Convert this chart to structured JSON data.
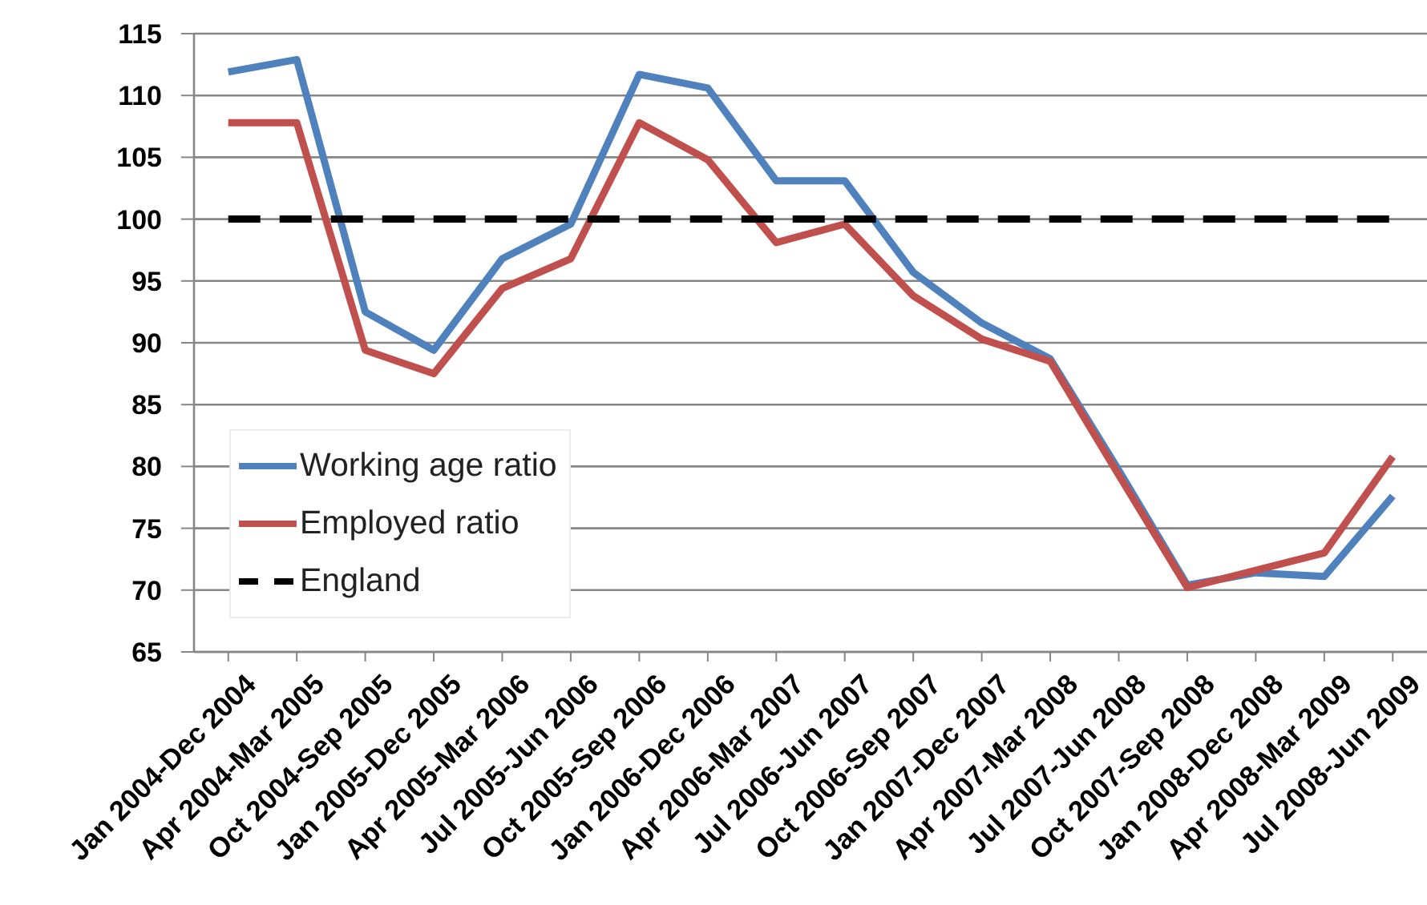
{
  "chart_data": {
    "type": "line",
    "categories": [
      "Jan 2004-Dec 2004",
      "Apr 2004-Mar 2005",
      "Oct 2004-Sep 2005",
      "Jan 2005-Dec 2005",
      "Apr 2005-Mar 2006",
      "Jul 2005-Jun 2006",
      "Oct 2005-Sep 2006",
      "Jan 2006-Dec 2006",
      "Apr 2006-Mar 2007",
      "Jul 2006-Jun 2007",
      "Oct 2006-Sep 2007",
      "Jan 2007-Dec 2007",
      "Apr 2007-Mar 2008",
      "Jul 2007-Jun 2008",
      "Oct 2007-Sep 2008",
      "Jan 2008-Dec 2008",
      "Apr 2008-Mar 2009",
      "Jul 2008-Jun 2009"
    ],
    "series": [
      {
        "name": "Working age ratio",
        "color": "#4f81bd",
        "values": [
          111.9,
          112.9,
          92.5,
          89.4,
          96.8,
          99.6,
          111.7,
          110.6,
          103.1,
          103.1,
          95.7,
          91.6,
          88.7,
          79.7,
          70.4,
          71.4,
          71.1,
          77.6
        ]
      },
      {
        "name": "Employed ratio",
        "color": "#c0504d",
        "values": [
          107.8,
          107.8,
          89.4,
          87.5,
          94.4,
          96.8,
          107.8,
          104.8,
          98.1,
          99.6,
          93.8,
          90.3,
          88.5,
          79.3,
          70.2,
          71.6,
          73.0,
          80.8
        ]
      },
      {
        "name": "England",
        "color": "#000000",
        "line_style": "dashed",
        "values": [
          100,
          100,
          100,
          100,
          100,
          100,
          100,
          100,
          100,
          100,
          100,
          100,
          100,
          100,
          100,
          100,
          100,
          100
        ]
      }
    ],
    "ylim": [
      65,
      115
    ],
    "yticks": [
      65,
      70,
      75,
      80,
      85,
      90,
      95,
      100,
      105,
      110,
      115
    ],
    "grid": "y",
    "legend": "bottom left",
    "marker": "none",
    "line_style": "solid"
  }
}
